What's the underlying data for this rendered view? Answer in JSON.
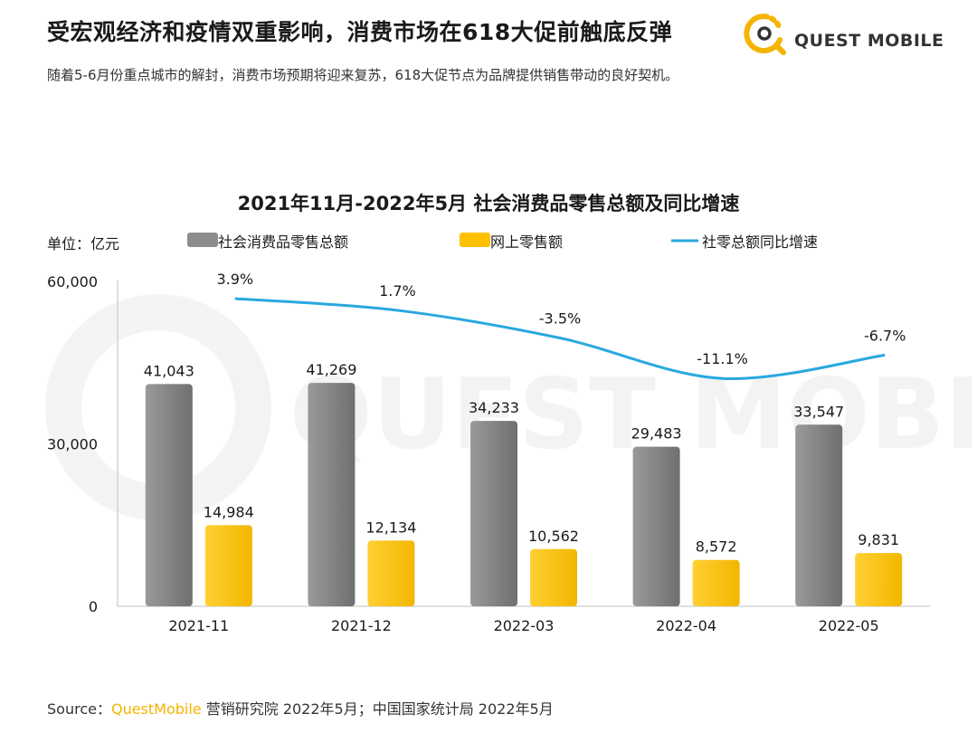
{
  "header": {
    "title": "受宏观经济和疫情双重影响，消费市场在618大促前触底反弹",
    "subtitle": "随着5-6月份重点城市的解封，消费市场预期将迎来复苏，618大促节点为品牌提供销售带动的良好契机。"
  },
  "logo": {
    "text": "QUEST MOBILE",
    "icon": "questmobile-logo-icon",
    "watermark_text": "QUEST MOBILE"
  },
  "source": {
    "prefix": "Source：",
    "brand": "QuestMobile",
    "rest": " 营销研究院 2022年5月；中国国家统计局  2022年5月"
  },
  "colors": {
    "gray_bar": "#8c8c8c",
    "yellow_bar": "#ffc000",
    "line": "#29a8df",
    "brand_yellow": "#f5b400"
  },
  "chart_data": {
    "type": "bar",
    "title": "2021年11月-2022年5月 社会消费品零售总额及同比增速",
    "unit_label": "单位：亿元",
    "categories": [
      "2021-11",
      "2021-12",
      "2022-03",
      "2022-04",
      "2022-05"
    ],
    "y_ticks": [
      "60,000",
      "30,000",
      "0"
    ],
    "ylim": [
      0,
      60000
    ],
    "grid": false,
    "legend_position": "top",
    "series": [
      {
        "name": "社会消费品零售总额",
        "kind": "bar",
        "color": "#8c8c8c",
        "values": [
          41043,
          41269,
          34233,
          29483,
          33547
        ],
        "labels": [
          "41,043",
          "41,269",
          "34,233",
          "29,483",
          "33,547"
        ]
      },
      {
        "name": "网上零售额",
        "kind": "bar",
        "color": "#ffc000",
        "values": [
          14984,
          12134,
          10562,
          8572,
          9831
        ],
        "labels": [
          "14,984",
          "12,134",
          "10,562",
          "8,572",
          "9,831"
        ]
      },
      {
        "name": "社零总额同比增速",
        "kind": "line",
        "color": "#29a8df",
        "values": [
          3.9,
          1.7,
          -3.5,
          -11.1,
          -6.7
        ],
        "labels": [
          "3.9%",
          "1.7%",
          "-3.5%",
          "-11.1%",
          "-6.7%"
        ]
      }
    ]
  }
}
